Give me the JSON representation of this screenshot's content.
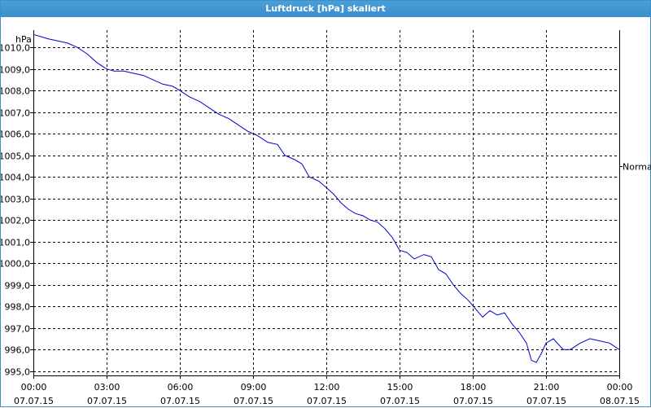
{
  "window": {
    "title": "Luftdruck [hPa] skaliert"
  },
  "chart_data": {
    "type": "line",
    "title": "Luftdruck [hPa] skaliert",
    "ylabel": "hPa",
    "xlabel": "",
    "ylim": [
      994.8,
      1010.8
    ],
    "y_ticks": [
      "995,0",
      "996,0",
      "997,0",
      "998,0",
      "999,0",
      "1000,0",
      "1001,0",
      "1002,0",
      "1003,0",
      "1004,0",
      "1005,0",
      "1006,0",
      "1007,0",
      "1008,0",
      "1009,0",
      "1010,0"
    ],
    "y_tick_values": [
      995,
      996,
      997,
      998,
      999,
      1000,
      1001,
      1002,
      1003,
      1004,
      1005,
      1006,
      1007,
      1008,
      1009,
      1010
    ],
    "x_ticks": [
      {
        "time": "00:00",
        "date": "07.07.15"
      },
      {
        "time": "03:00",
        "date": "07.07.15"
      },
      {
        "time": "06:00",
        "date": "07.07.15"
      },
      {
        "time": "09:00",
        "date": "07.07.15"
      },
      {
        "time": "12:00",
        "date": "07.07.15"
      },
      {
        "time": "15:00",
        "date": "07.07.15"
      },
      {
        "time": "18:00",
        "date": "07.07.15"
      },
      {
        "time": "21:00",
        "date": "07.07.15"
      },
      {
        "time": "00:00",
        "date": "08.07.15"
      }
    ],
    "x_tick_hours": [
      0,
      3,
      6,
      9,
      12,
      15,
      18,
      21,
      24
    ],
    "xlim": [
      0,
      24
    ],
    "right_label": "Normal",
    "right_label_value": 1004.5,
    "grid": true,
    "line_color": "#0000cc",
    "series": [
      {
        "values": [
          [
            0,
            1010.6
          ],
          [
            0.3,
            1010.5
          ],
          [
            0.6,
            1010.4
          ],
          [
            1.0,
            1010.3
          ],
          [
            1.4,
            1010.2
          ],
          [
            1.8,
            1010.0
          ],
          [
            2.2,
            1009.7
          ],
          [
            2.6,
            1009.3
          ],
          [
            3.0,
            1009.0
          ],
          [
            3.3,
            1008.9
          ],
          [
            3.7,
            1008.9
          ],
          [
            4.1,
            1008.8
          ],
          [
            4.5,
            1008.7
          ],
          [
            4.9,
            1008.5
          ],
          [
            5.3,
            1008.3
          ],
          [
            5.7,
            1008.2
          ],
          [
            6.0,
            1008.0
          ],
          [
            6.4,
            1007.7
          ],
          [
            6.8,
            1007.5
          ],
          [
            7.2,
            1007.2
          ],
          [
            7.6,
            1006.9
          ],
          [
            8.0,
            1006.7
          ],
          [
            8.4,
            1006.4
          ],
          [
            8.8,
            1006.1
          ],
          [
            9.2,
            1005.9
          ],
          [
            9.6,
            1005.6
          ],
          [
            10.0,
            1005.5
          ],
          [
            10.3,
            1005.0
          ],
          [
            10.7,
            1004.8
          ],
          [
            11.0,
            1004.6
          ],
          [
            11.3,
            1004.0
          ],
          [
            11.7,
            1003.8
          ],
          [
            12.0,
            1003.5
          ],
          [
            12.3,
            1003.2
          ],
          [
            12.6,
            1002.8
          ],
          [
            12.9,
            1002.5
          ],
          [
            13.2,
            1002.3
          ],
          [
            13.5,
            1002.2
          ],
          [
            13.8,
            1002.0
          ],
          [
            14.1,
            1001.9
          ],
          [
            14.4,
            1001.6
          ],
          [
            14.7,
            1001.2
          ],
          [
            15.0,
            1000.6
          ],
          [
            15.3,
            1000.5
          ],
          [
            15.6,
            1000.2
          ],
          [
            16.0,
            1000.4
          ],
          [
            16.3,
            1000.3
          ],
          [
            16.6,
            999.7
          ],
          [
            16.9,
            999.5
          ],
          [
            17.2,
            999.0
          ],
          [
            17.5,
            998.6
          ],
          [
            17.8,
            998.3
          ],
          [
            18.1,
            997.9
          ],
          [
            18.4,
            997.5
          ],
          [
            18.7,
            997.8
          ],
          [
            19.0,
            997.6
          ],
          [
            19.3,
            997.7
          ],
          [
            19.6,
            997.2
          ],
          [
            19.9,
            996.8
          ],
          [
            20.2,
            996.3
          ],
          [
            20.4,
            995.5
          ],
          [
            20.6,
            995.4
          ],
          [
            20.8,
            995.8
          ],
          [
            21.0,
            996.3
          ],
          [
            21.3,
            996.5
          ],
          [
            21.7,
            996.0
          ],
          [
            22.0,
            996.0
          ],
          [
            22.4,
            996.3
          ],
          [
            22.8,
            996.5
          ],
          [
            23.2,
            996.4
          ],
          [
            23.6,
            996.3
          ],
          [
            24.0,
            996.0
          ]
        ]
      }
    ]
  }
}
